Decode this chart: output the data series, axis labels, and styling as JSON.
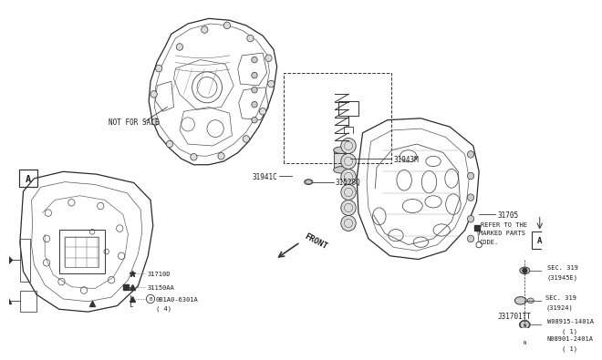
{
  "bg_color": "#ffffff",
  "diagram_id": "J31701TT",
  "text_color": "#1a1a1a",
  "line_color": "#333333",
  "not_for_sale": "NOT FOR SALE",
  "front_label": "FRONT",
  "refer_text": "REFER TO THE\nMARKED PARTS\nCODE.",
  "labels": {
    "31943M": [
      0.685,
      0.845
    ],
    "31941C": [
      0.495,
      0.72
    ],
    "31705": [
      0.895,
      0.6
    ],
    "31528Q": [
      0.435,
      0.535
    ],
    "SEC319_31945E_line1": "SEC. 319",
    "SEC319_31945E_line2": "(31945E)",
    "SEC319_31924_line1": "SEC. 319",
    "SEC319_31924_line2": "(31924)",
    "W_part": "W08915-1401A",
    "W_sub": "( 1)",
    "N_part": "N08901-2401A",
    "N_sub": "( 1)"
  },
  "legend": {
    "star_label": "31710D",
    "sq_tri_label": "31150AA",
    "tri_b_label": "0B1A0-6301A",
    "tri_b_sub": "( 4)"
  },
  "section_A_main": [
    0.025,
    0.865
  ],
  "section_A_valve": [
    0.645,
    0.43
  ],
  "font_size": 5.5
}
